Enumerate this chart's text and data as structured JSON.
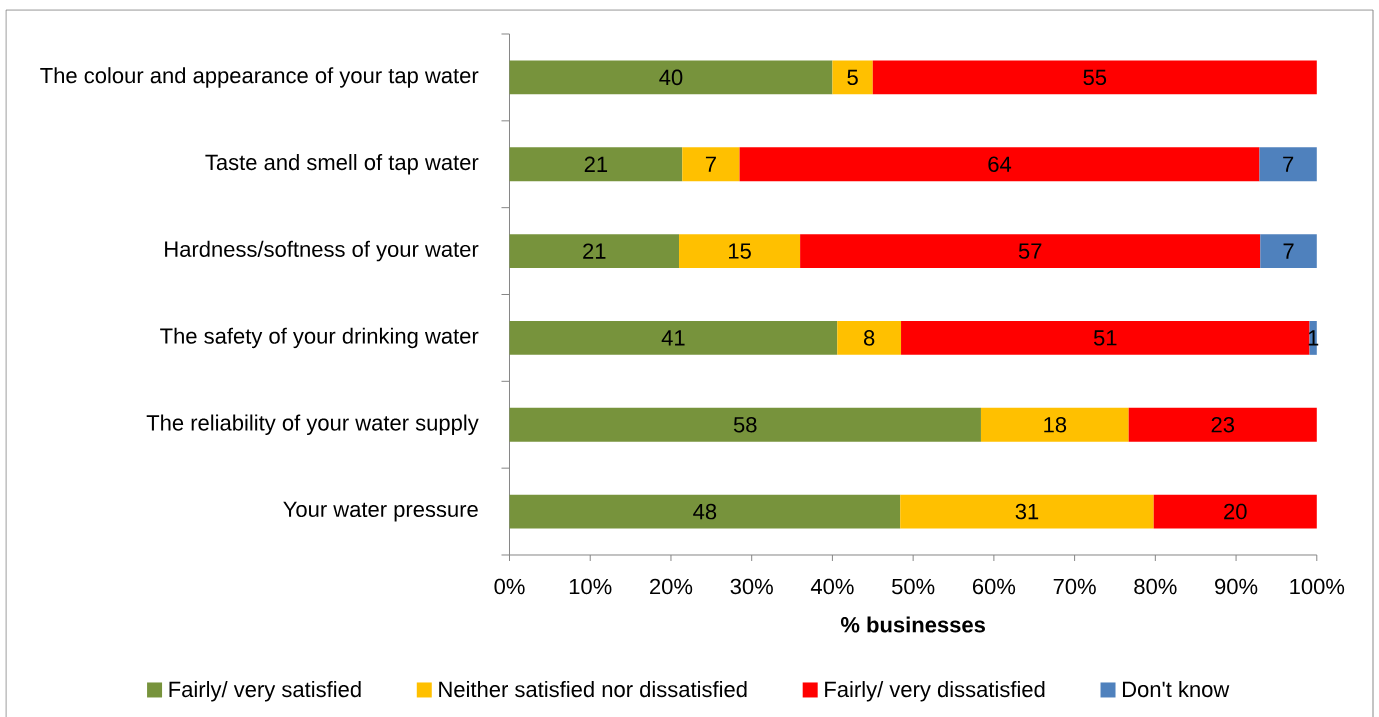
{
  "chart_data": {
    "type": "bar",
    "orientation": "horizontal",
    "stacked": true,
    "xlabel": "% businesses",
    "categories": [
      "The colour and appearance of your tap water",
      "Taste and smell of tap water",
      "Hardness/softness of your water",
      "The safety of your drinking water",
      "The reliability of your water supply",
      "Your water pressure"
    ],
    "series": [
      {
        "name": "Fairly/ very satisfied",
        "color": "#77933c",
        "values": [
          40,
          21.4,
          21,
          40.6,
          58.4,
          48.4
        ],
        "value_labels": [
          "40",
          "21",
          "21",
          "41",
          "58",
          "48"
        ]
      },
      {
        "name": "Neither satisfied nor dissatisfied",
        "color": "#ffc000",
        "values": [
          5,
          7.1,
          15,
          7.9,
          18.3,
          31.4
        ],
        "value_labels": [
          "5",
          "7",
          "15",
          "8",
          "18",
          "31"
        ]
      },
      {
        "name": "Fairly/ very dissatisfied",
        "color": "#ff0000",
        "values": [
          55,
          64.4,
          57,
          50.6,
          23.3,
          20.2
        ],
        "value_labels": [
          "55",
          "64",
          "57",
          "51",
          "23",
          "20"
        ]
      },
      {
        "name": "Don't know",
        "color": "#4f81bd",
        "values": [
          null,
          7.1,
          7,
          0.9,
          null,
          null
        ],
        "value_labels": [
          null,
          "7",
          "7",
          "1",
          null,
          null
        ]
      }
    ],
    "xlim": [
      0,
      100
    ],
    "xticks": [
      {
        "value": 0,
        "label": "0%"
      },
      {
        "value": 10,
        "label": "10%"
      },
      {
        "value": 20,
        "label": "20%"
      },
      {
        "value": 30,
        "label": "30%"
      },
      {
        "value": 40,
        "label": "40%"
      },
      {
        "value": 50,
        "label": "50%"
      },
      {
        "value": 60,
        "label": "60%"
      },
      {
        "value": 70,
        "label": "70%"
      },
      {
        "value": 80,
        "label": "80%"
      },
      {
        "value": 90,
        "label": "90%"
      },
      {
        "value": 100,
        "label": "100%"
      }
    ],
    "legend": "bottom",
    "grid": false
  }
}
